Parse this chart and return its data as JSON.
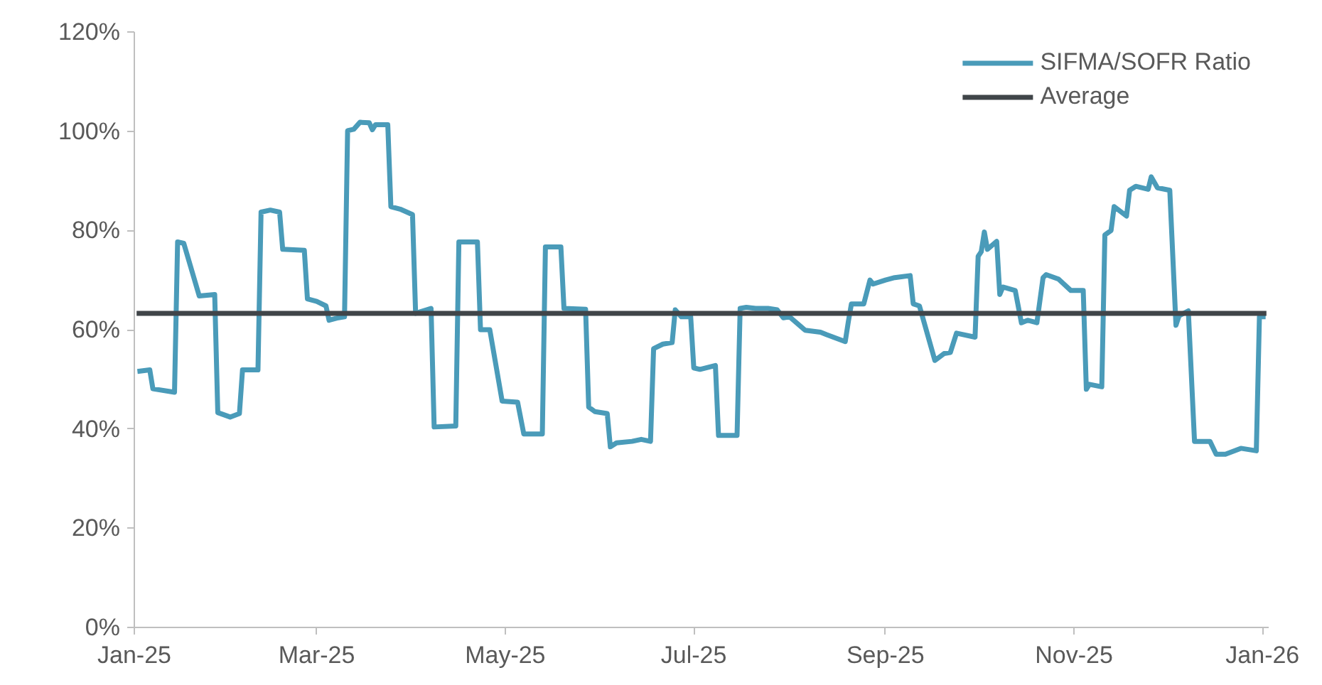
{
  "chart_data": {
    "type": "line",
    "x": [
      "2025-01-02",
      "2025-01-06",
      "2025-01-07",
      "2025-01-14",
      "2025-01-15",
      "2025-01-17",
      "2025-01-22",
      "2025-01-27",
      "2025-01-28",
      "2025-02-01",
      "2025-02-04",
      "2025-02-05",
      "2025-02-10",
      "2025-02-11",
      "2025-02-14",
      "2025-02-17",
      "2025-02-18",
      "2025-02-25",
      "2025-02-26",
      "2025-03-01",
      "2025-03-04",
      "2025-03-05",
      "2025-03-08",
      "2025-03-10",
      "2025-03-11",
      "2025-03-13",
      "2025-03-15",
      "2025-03-18",
      "2025-03-19",
      "2025-03-20",
      "2025-03-24",
      "2025-03-25",
      "2025-03-28",
      "2025-04-01",
      "2025-04-02",
      "2025-04-07",
      "2025-04-08",
      "2025-04-15",
      "2025-04-16",
      "2025-04-22",
      "2025-04-23",
      "2025-04-26",
      "2025-04-30",
      "2025-05-05",
      "2025-05-07",
      "2025-05-13",
      "2025-05-14",
      "2025-05-19",
      "2025-05-20",
      "2025-05-27",
      "2025-05-28",
      "2025-05-30",
      "2025-06-03",
      "2025-06-04",
      "2025-06-06",
      "2025-06-11",
      "2025-06-14",
      "2025-06-17",
      "2025-06-18",
      "2025-06-21",
      "2025-06-24",
      "2025-06-25",
      "2025-06-27",
      "2025-06-30",
      "2025-07-01",
      "2025-07-03",
      "2025-07-08",
      "2025-07-09",
      "2025-07-15",
      "2025-07-16",
      "2025-07-18",
      "2025-07-21",
      "2025-07-25",
      "2025-07-28",
      "2025-07-30",
      "2025-08-01",
      "2025-08-06",
      "2025-08-11",
      "2025-08-13",
      "2025-08-19",
      "2025-08-20",
      "2025-08-21",
      "2025-08-25",
      "2025-08-27",
      "2025-08-28",
      "2025-09-01",
      "2025-09-04",
      "2025-09-09",
      "2025-09-10",
      "2025-09-12",
      "2025-09-17",
      "2025-09-20",
      "2025-09-22",
      "2025-09-24",
      "2025-09-30",
      "2025-10-01",
      "2025-10-02",
      "2025-10-03",
      "2025-10-04",
      "2025-10-07",
      "2025-10-08",
      "2025-10-09",
      "2025-10-13",
      "2025-10-15",
      "2025-10-17",
      "2025-10-20",
      "2025-10-22",
      "2025-10-23",
      "2025-10-27",
      "2025-10-31",
      "2025-11-04",
      "2025-11-05",
      "2025-11-06",
      "2025-11-10",
      "2025-11-11",
      "2025-11-13",
      "2025-11-14",
      "2025-11-18",
      "2025-11-19",
      "2025-11-21",
      "2025-11-25",
      "2025-11-26",
      "2025-11-28",
      "2025-12-02",
      "2025-12-04",
      "2025-12-05",
      "2025-12-08",
      "2025-12-10",
      "2025-12-15",
      "2025-12-17",
      "2025-12-20",
      "2025-12-25",
      "2025-12-30",
      "2025-12-31",
      "2026-01-02"
    ],
    "series": [
      {
        "name": "SIFMA/SOFR Ratio",
        "color": "#4a9bb9",
        "values": [
          51.6,
          51.9,
          48.1,
          47.4,
          77.7,
          77.4,
          66.8,
          67.1,
          43.3,
          42.4,
          43.1,
          51.9,
          51.9,
          83.7,
          84.1,
          83.7,
          76.2,
          76.0,
          66.2,
          65.7,
          64.8,
          61.9,
          62.4,
          62.6,
          100.1,
          100.4,
          101.8,
          101.7,
          100.3,
          101.3,
          101.3,
          84.8,
          84.3,
          83.2,
          63.3,
          64.3,
          40.4,
          40.6,
          77.7,
          77.7,
          60.0,
          60.0,
          45.6,
          45.4,
          39.0,
          39.0,
          76.7,
          76.7,
          64.3,
          64.1,
          44.4,
          43.5,
          43.1,
          36.4,
          37.2,
          37.5,
          37.9,
          37.5,
          56.2,
          57.1,
          57.4,
          64.0,
          62.6,
          62.6,
          52.3,
          52.0,
          52.8,
          38.7,
          38.7,
          64.3,
          64.5,
          64.3,
          64.3,
          64.0,
          62.4,
          62.6,
          59.9,
          59.5,
          59.0,
          57.6,
          61.6,
          65.2,
          65.2,
          70.0,
          69.2,
          70.0,
          70.5,
          70.9,
          65.2,
          64.8,
          53.8,
          55.2,
          55.4,
          59.3,
          58.5,
          74.8,
          75.7,
          79.7,
          76.2,
          77.8,
          67.1,
          68.6,
          67.9,
          61.4,
          61.9,
          61.4,
          70.5,
          71.1,
          70.2,
          67.9,
          67.9,
          48.0,
          49.0,
          48.5,
          79.1,
          80.0,
          84.8,
          82.9,
          88.1,
          88.9,
          88.3,
          90.8,
          88.6,
          88.1,
          60.9,
          62.8,
          63.8,
          37.5,
          37.5,
          34.9,
          34.9,
          36.1,
          35.6,
          62.6,
          62.6
        ]
      }
    ],
    "ref_lines": [
      {
        "axis": "y",
        "value": 63.3,
        "label": "Average",
        "color": "#404549",
        "line_style": "solid"
      }
    ],
    "xlim": [
      "2025-01-01",
      "2026-01-03"
    ],
    "xticks": [
      {
        "value": "2025-01-01",
        "label": "Jan-25"
      },
      {
        "value": "2025-03-01",
        "label": "Mar-25"
      },
      {
        "value": "2025-05-01",
        "label": "May-25"
      },
      {
        "value": "2025-07-01",
        "label": "Jul-25"
      },
      {
        "value": "2025-09-01",
        "label": "Sep-25"
      },
      {
        "value": "2025-11-01",
        "label": "Nov-25"
      },
      {
        "value": "2026-01-01",
        "label": "Jan-26"
      }
    ],
    "ylim": [
      0,
      120
    ],
    "yticks": [
      {
        "value": 0,
        "label": "0%"
      },
      {
        "value": 20,
        "label": "20%"
      },
      {
        "value": 40,
        "label": "40%"
      },
      {
        "value": 60,
        "label": "60%"
      },
      {
        "value": 80,
        "label": "80%"
      },
      {
        "value": 100,
        "label": "100%"
      },
      {
        "value": 120,
        "label": "120%"
      }
    ],
    "grid": false,
    "legend": "top right",
    "marker": "none",
    "line_style": "solid"
  }
}
